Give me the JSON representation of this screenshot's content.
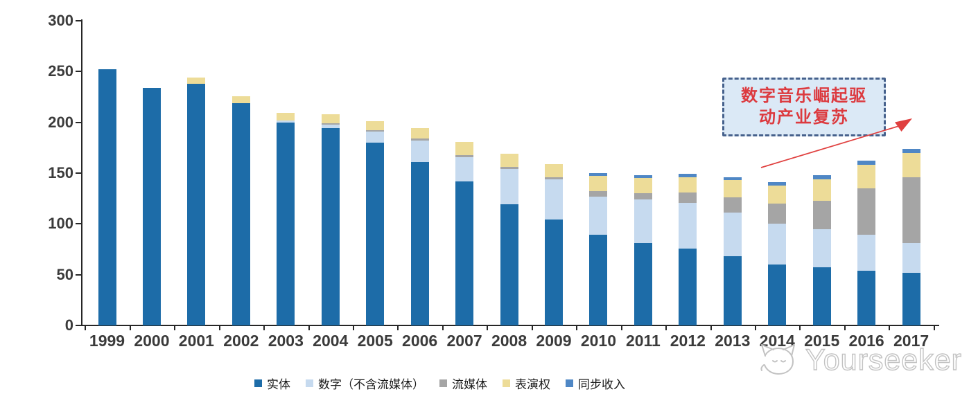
{
  "chart_data": {
    "type": "bar",
    "stacked": true,
    "title": "",
    "xlabel": "",
    "ylabel": "",
    "categories": [
      "1999",
      "2000",
      "2001",
      "2002",
      "2003",
      "2004",
      "2005",
      "2006",
      "2007",
      "2008",
      "2009",
      "2010",
      "2011",
      "2012",
      "2013",
      "2014",
      "2015",
      "2016",
      "2017"
    ],
    "series": [
      {
        "key": "physical",
        "name": "实体",
        "color": "#1d6ca8",
        "values": [
          252,
          234,
          238,
          219,
          200,
          194,
          180,
          161,
          142,
          119,
          104,
          89,
          81,
          76,
          68,
          60,
          57,
          54,
          52
        ]
      },
      {
        "key": "digital-ex-stream",
        "name": "数字（不含流媒体）",
        "color": "#c6daef",
        "values": [
          0,
          0,
          0,
          0,
          2,
          4,
          11,
          21,
          24,
          35,
          40,
          38,
          43,
          45,
          43,
          40,
          38,
          35,
          29
        ]
      },
      {
        "key": "streaming",
        "name": "流媒体",
        "color": "#a5a5a5",
        "values": [
          0,
          0,
          0,
          0,
          0,
          1,
          1,
          2,
          2,
          2,
          2,
          5,
          6,
          10,
          15,
          20,
          28,
          46,
          65
        ]
      },
      {
        "key": "performance",
        "name": "表演权",
        "color": "#eddc98",
        "values": [
          0,
          0,
          6,
          7,
          7,
          9,
          9,
          10,
          13,
          13,
          13,
          15,
          15,
          15,
          17,
          18,
          21,
          23,
          24
        ]
      },
      {
        "key": "sync",
        "name": "同步收入",
        "color": "#4f87c5",
        "values": [
          0,
          0,
          0,
          0,
          0,
          0,
          0,
          0,
          0,
          0,
          0,
          3,
          3,
          3,
          3,
          3,
          4,
          4,
          4
        ]
      }
    ],
    "ylim": [
      0,
      300
    ],
    "yticks": [
      0,
      50,
      100,
      150,
      200,
      250,
      300
    ],
    "grid": false,
    "legend_position": "bottom"
  },
  "annotation": {
    "line1": "数字音乐崛起驱",
    "line2": "动产业复苏",
    "text_color": "#dc3a3f",
    "box_fill": "#dbe9f6",
    "box_border": "#46618c",
    "arrow_color": "#e0403f"
  },
  "watermark": {
    "text": "Yourseeker",
    "logo": "cat-logo",
    "color": "#c3c3c3"
  }
}
